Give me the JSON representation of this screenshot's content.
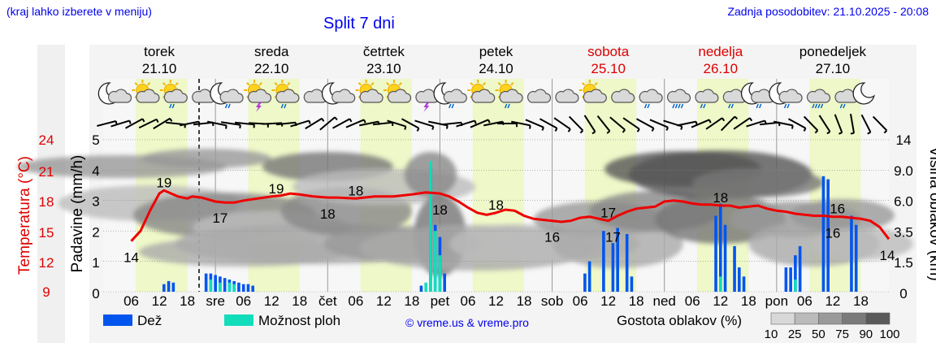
{
  "header": {
    "location_hint": "(kraj lahko izberete v meniju)",
    "title": "Split 7 dni",
    "updated": "Zadnja posodobitev: 21.10.2025 - 20:08"
  },
  "days": [
    {
      "name": "torek",
      "date": "21.10",
      "weekend": false
    },
    {
      "name": "sreda",
      "date": "22.10",
      "weekend": false
    },
    {
      "name": "četrtek",
      "date": "23.10",
      "weekend": false
    },
    {
      "name": "petek",
      "date": "24.10",
      "weekend": false
    },
    {
      "name": "sobota",
      "date": "25.10",
      "weekend": true
    },
    {
      "name": "nedelja",
      "date": "26.10",
      "weekend": true
    },
    {
      "name": "ponedeljek",
      "date": "27.10",
      "weekend": false
    }
  ],
  "weather_icons": [
    "moon-cloud-icon",
    "sun-cloud-icon",
    "sun-cloud-rain-icon",
    "cloud-icon",
    "moon-cloud-rain-icon",
    "sun-cloud-storm-icon",
    "sun-cloud-rain-icon",
    "cloud-icon",
    "moon-cloud-icon",
    "sun-cloud-icon",
    "sun-cloud-icon",
    "cloud-storm-icon",
    "moon-cloud-rain-icon",
    "sun-cloud-icon",
    "sun-cloud-rain-icon",
    "cloud-icon",
    "cloud-icon",
    "sun-cloud-icon",
    "cloud-icon",
    "cloud-rain-icon",
    "cloud-heavy-rain-icon",
    "cloud-rain-icon",
    "cloud-rain-icon",
    "moon-cloud-rain-icon",
    "moon-cloud-rain-icon",
    "cloud-heavy-rain-icon",
    "cloud-rain-icon",
    "moon-icon"
  ],
  "axes": {
    "temp_label": "Temperatura (°C)",
    "precip_label": "Padavine (mm/h)",
    "cloud_label": "Višina oblakov (km)",
    "temp_ticks": [
      "24",
      "21",
      "18",
      "15",
      "12",
      "9"
    ],
    "precip_ticks": [
      "5",
      "4",
      "3",
      "2",
      "1",
      "0"
    ],
    "cloud_ticks": [
      "14",
      "9.0",
      "6.0",
      "3.5",
      "1.5",
      "0"
    ],
    "x_ticks": [
      "06",
      "12",
      "18",
      "sre",
      "06",
      "12",
      "18",
      "čet",
      "06",
      "12",
      "18",
      "pet",
      "06",
      "12",
      "18",
      "sob",
      "06",
      "12",
      "18",
      "ned",
      "06",
      "12",
      "18",
      "pon",
      "06",
      "12",
      "18"
    ]
  },
  "legend": {
    "rain": "Dež",
    "showers": "Možnost ploh",
    "credit": "© vreme.us & vreme.pro",
    "cloud_density": "Gostota oblakov (%)",
    "density_ticks": [
      "10",
      "25",
      "50",
      "75",
      "90",
      "100"
    ]
  },
  "colors": {
    "temperature": "#ee0000",
    "rain": "#0055ee",
    "showers": "#11ddbb",
    "daytime": "#eef8c8",
    "weekend_text": "#dd0000",
    "link": "#0000ee"
  },
  "chart_data": {
    "type": "line",
    "x_unit": "hours from 21.10 00:00",
    "x_range": [
      0,
      168
    ],
    "temperature": {
      "ylim": [
        9,
        24
      ],
      "points": [
        [
          6,
          14
        ],
        [
          8,
          15
        ],
        [
          10,
          17
        ],
        [
          12,
          18.7
        ],
        [
          13,
          19
        ],
        [
          16,
          18.4
        ],
        [
          18,
          18.2
        ],
        [
          19,
          18.4
        ],
        [
          21,
          18.3
        ],
        [
          24,
          17.9
        ],
        [
          26,
          17.8
        ],
        [
          28,
          17.8
        ],
        [
          30,
          18.0
        ],
        [
          33,
          18.2
        ],
        [
          36,
          18.4
        ],
        [
          38,
          18.5
        ],
        [
          40,
          18.7
        ],
        [
          42,
          18.6
        ],
        [
          45,
          18.4
        ],
        [
          48,
          18.3
        ],
        [
          50,
          18.3
        ],
        [
          54,
          18.2
        ],
        [
          58,
          18.4
        ],
        [
          62,
          18.4
        ],
        [
          66,
          18.6
        ],
        [
          69,
          18.8
        ],
        [
          72,
          18.7
        ],
        [
          74,
          18.4
        ],
        [
          76,
          17.9
        ],
        [
          78,
          17.3
        ],
        [
          80,
          16.8
        ],
        [
          82,
          16.6
        ],
        [
          84,
          16.8
        ],
        [
          86,
          17.1
        ],
        [
          88,
          17.0
        ],
        [
          90,
          16.5
        ],
        [
          92,
          16.2
        ],
        [
          94,
          16.1
        ],
        [
          96,
          16.0
        ],
        [
          98,
          15.9
        ],
        [
          100,
          16.0
        ],
        [
          102,
          16.3
        ],
        [
          104,
          16.4
        ],
        [
          106,
          16.2
        ],
        [
          108,
          16.0
        ],
        [
          110,
          16.5
        ],
        [
          112,
          16.9
        ],
        [
          114,
          17.2
        ],
        [
          116,
          17.3
        ],
        [
          118,
          17.4
        ],
        [
          120,
          17.9
        ],
        [
          122,
          18.0
        ],
        [
          124,
          17.9
        ],
        [
          126,
          17.7
        ],
        [
          128,
          17.6
        ],
        [
          130,
          17.6
        ],
        [
          132,
          17.5
        ],
        [
          134,
          17.5
        ],
        [
          136,
          17.3
        ],
        [
          138,
          17.4
        ],
        [
          140,
          17.5
        ],
        [
          142,
          17.2
        ],
        [
          144,
          17.0
        ],
        [
          146,
          16.9
        ],
        [
          148,
          16.7
        ],
        [
          150,
          16.6
        ],
        [
          152,
          16.5
        ],
        [
          154,
          16.5
        ],
        [
          156,
          16.4
        ],
        [
          158,
          16.4
        ],
        [
          160,
          16.3
        ],
        [
          162,
          16.2
        ],
        [
          164,
          16.0
        ],
        [
          166,
          15.4
        ],
        [
          168,
          14.2
        ]
      ],
      "labels": [
        {
          "x": 6,
          "value": "14"
        },
        {
          "x": 13,
          "value": "19"
        },
        {
          "x": 25,
          "value": "17"
        },
        {
          "x": 37,
          "value": "19"
        },
        {
          "x": 48,
          "value": "18"
        },
        {
          "x": 54,
          "value": "18"
        },
        {
          "x": 72,
          "value": "18"
        },
        {
          "x": 84,
          "value": "18"
        },
        {
          "x": 96,
          "value": "16"
        },
        {
          "x": 108,
          "value": "17"
        },
        {
          "x": 109,
          "value": "17"
        },
        {
          "x": 132,
          "value": "18"
        },
        {
          "x": 156,
          "value": "16"
        },
        {
          "x": 157,
          "value": "16"
        },
        {
          "x": 168,
          "value": "14"
        }
      ]
    },
    "precipitation": {
      "ylim": [
        0,
        5
      ],
      "rain": [
        [
          13,
          0.25
        ],
        [
          14,
          0.35
        ],
        [
          15,
          0.3
        ],
        [
          22,
          0.6
        ],
        [
          23,
          0.6
        ],
        [
          24,
          0.55
        ],
        [
          25,
          0.5
        ],
        [
          26,
          0.45
        ],
        [
          27,
          0.4
        ],
        [
          28,
          0.35
        ],
        [
          29,
          0.3
        ],
        [
          30,
          0.25
        ],
        [
          31,
          0.25
        ],
        [
          32,
          0.2
        ],
        [
          68,
          0.2
        ],
        [
          70,
          4.1
        ],
        [
          71,
          2.2
        ],
        [
          72,
          1.8
        ],
        [
          73,
          0.6
        ],
        [
          103,
          0.6
        ],
        [
          104,
          1.0
        ],
        [
          107,
          2.0
        ],
        [
          109,
          1.6
        ],
        [
          110,
          2.1
        ],
        [
          112,
          1.9
        ],
        [
          113,
          0.5
        ],
        [
          131,
          2.5
        ],
        [
          132,
          2.9
        ],
        [
          133,
          2.2
        ],
        [
          135,
          1.5
        ],
        [
          136,
          0.8
        ],
        [
          137,
          0.5
        ],
        [
          146,
          0.8
        ],
        [
          147,
          0.8
        ],
        [
          148,
          1.2
        ],
        [
          149,
          1.5
        ],
        [
          154,
          3.8
        ],
        [
          155,
          3.7
        ],
        [
          160,
          2.5
        ],
        [
          161,
          2.2
        ]
      ],
      "showers": [
        [
          69,
          0.3
        ],
        [
          70,
          4.3
        ],
        [
          71,
          2.0
        ],
        [
          72,
          1.2
        ],
        [
          23,
          0.4
        ],
        [
          25,
          0.3
        ],
        [
          27,
          0.3
        ],
        [
          28,
          0.25
        ],
        [
          132,
          0.5
        ],
        [
          148,
          0.4
        ]
      ]
    },
    "cloud_height_ticks_km": [
      14,
      9.0,
      6.0,
      3.5,
      1.5,
      0
    ]
  }
}
